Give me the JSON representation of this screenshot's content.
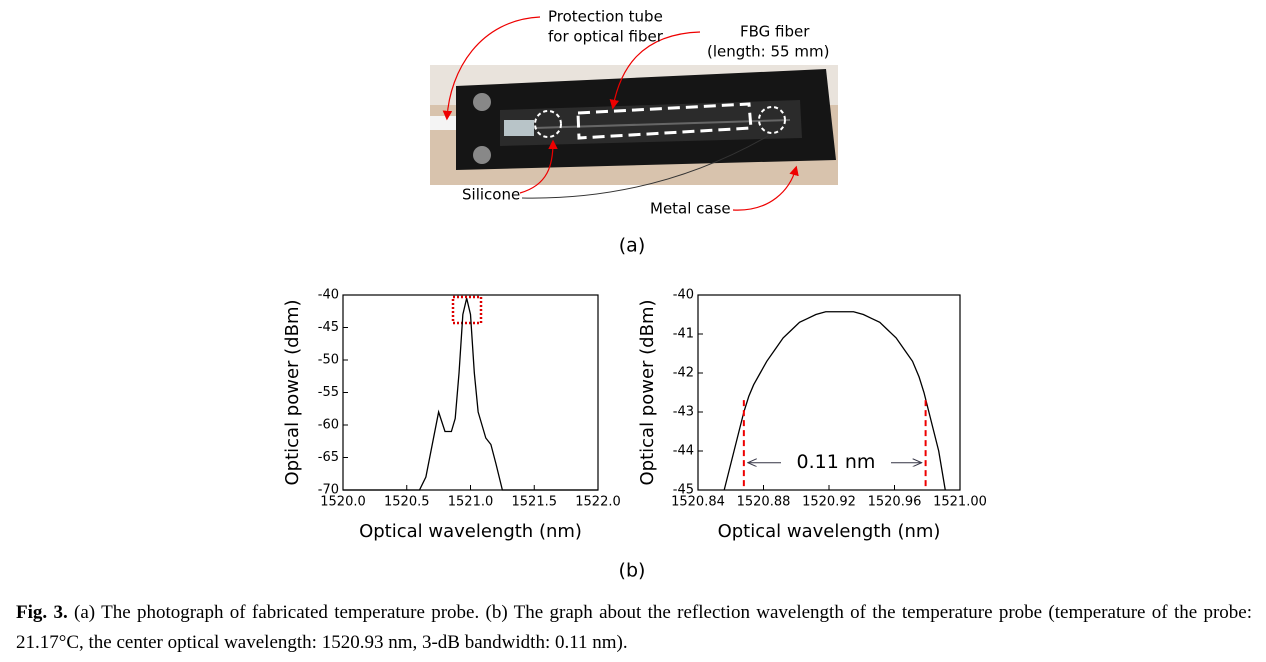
{
  "figure": {
    "photo_labels": {
      "protection_tube": [
        "Protection tube",
        "for optical fiber"
      ],
      "fbg_fiber": [
        "FBG fiber",
        "(length: 55 mm)"
      ],
      "silicone": "Silicone",
      "metal_case": "Metal case"
    },
    "panel_a": "(a)",
    "panel_b": "(b)",
    "caption": {
      "label": "Fig. 3.",
      "text": "(a) The photograph of fabricated temperature probe. (b) The graph about the reflection wavelength of the temperature probe (temperature of the probe: 21.17°C, the center optical wavelength: 1520.93 nm, 3-dB bandwidth: 0.11 nm)."
    }
  },
  "chart_data": [
    {
      "type": "line",
      "x_label": "Optical wavelength (nm)",
      "y_label": "Optical power (dBm)",
      "color": "#000000",
      "x": [
        1520.0,
        1520.6,
        1520.65,
        1520.7,
        1520.75,
        1520.8,
        1520.85,
        1520.88,
        1520.91,
        1520.94,
        1520.97,
        1521.0,
        1521.03,
        1521.06,
        1521.09,
        1521.12,
        1521.16,
        1521.2,
        1521.25,
        1521.3,
        1522.0
      ],
      "values": [
        -70,
        -70,
        -68,
        -63,
        -58,
        -61,
        -61,
        -59,
        -52,
        -43,
        -40.5,
        -43,
        -52,
        -58,
        -60,
        -62,
        -63,
        -66,
        -70,
        -70,
        -70
      ],
      "xlim": [
        1520.0,
        1522.0
      ],
      "xticks": [
        {
          "value": 1520,
          "label": "1520.0"
        },
        1520.5,
        {
          "value": 1521,
          "label": "1521.0"
        },
        1521.5,
        {
          "value": 1522,
          "label": "1522.0"
        }
      ],
      "ylim": [
        -70,
        -40
      ],
      "yticks": [
        -40,
        -45,
        -50,
        -55,
        -60,
        -65,
        -70
      ]
    },
    {
      "type": "line",
      "x_label": "Optical wavelength (nm)",
      "y_label": "Optical power (dBm)",
      "color": "#000000",
      "x": [
        1520.856,
        1520.862,
        1520.865,
        1520.868,
        1520.871,
        1520.874,
        1520.878,
        1520.882,
        1520.887,
        1520.892,
        1520.897,
        1520.902,
        1520.907,
        1520.912,
        1520.918,
        1520.935,
        1520.941,
        1520.946,
        1520.951,
        1520.956,
        1520.961,
        1520.966,
        1520.971,
        1520.975,
        1520.978,
        1520.981,
        1520.984,
        1520.987,
        1520.991
      ],
      "values": [
        -45,
        -44,
        -43.5,
        -43,
        -42.6,
        -42.3,
        -42,
        -41.7,
        -41.4,
        -41.1,
        -40.9,
        -40.7,
        -40.6,
        -40.5,
        -40.43,
        -40.43,
        -40.5,
        -40.6,
        -40.7,
        -40.9,
        -41.1,
        -41.4,
        -41.7,
        -42.1,
        -42.5,
        -43,
        -43.5,
        -44,
        -45
      ],
      "xlim": [
        1520.84,
        1521.0
      ],
      "xticks": [
        1520.84,
        1520.88,
        1520.92,
        1520.96,
        {
          "value": 1521,
          "label": "1521.00"
        }
      ],
      "ylim": [
        -45,
        -40
      ],
      "yticks": [
        -40,
        -41,
        -42,
        -43,
        -44,
        -45
      ],
      "markers": [
        1520.868,
        1520.979
      ],
      "annotation": "0.11 nm"
    }
  ]
}
